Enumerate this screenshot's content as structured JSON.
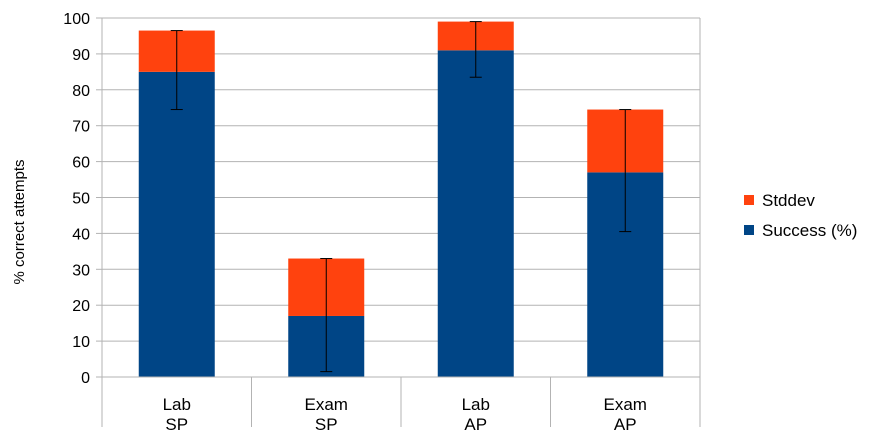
{
  "chart_data": {
    "type": "bar",
    "stacked": true,
    "categories": [
      [
        "Lab",
        "SP"
      ],
      [
        "Exam",
        "SP"
      ],
      [
        "Lab",
        "AP"
      ],
      [
        "Exam",
        "AP"
      ]
    ],
    "series": [
      {
        "name": "Success (%)",
        "color": "#004586",
        "values": [
          85,
          17,
          91,
          57
        ]
      },
      {
        "name": "Stddev",
        "color": "#ff420e",
        "values": [
          11.5,
          16,
          8,
          17.5
        ]
      }
    ],
    "error_bars": [
      {
        "low": 74.5,
        "high": 96.5
      },
      {
        "low": 1.5,
        "high": 33
      },
      {
        "low": 83.5,
        "high": 99
      },
      {
        "low": 40.5,
        "high": 74.5
      }
    ],
    "ylabel": "% correct attempts",
    "xlabel": "",
    "title": "",
    "ylim": [
      0,
      100
    ],
    "yticks": [
      0,
      10,
      20,
      30,
      40,
      50,
      60,
      70,
      80,
      90,
      100
    ],
    "grid": true,
    "legend_position": "right"
  }
}
